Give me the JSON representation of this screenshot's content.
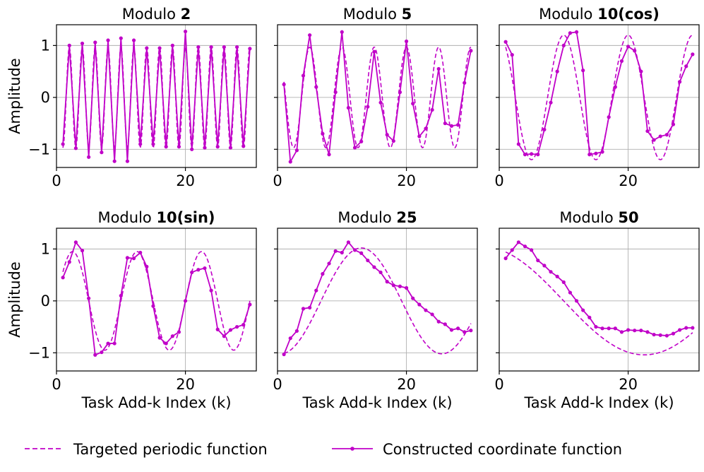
{
  "chart_data": {
    "type": "line",
    "color": "#c000c8",
    "legend": {
      "position": "bottom",
      "entries": [
        {
          "label": "Targeted periodic function",
          "style": "dashed"
        },
        {
          "label": "Constructed coordinate function",
          "style": "solid-marker"
        }
      ]
    },
    "xlabel": "Task Add-k Index (k)",
    "ylabel": "Amplitude",
    "xlim": [
      0,
      31
    ],
    "ylim": [
      -1.35,
      1.4
    ],
    "xticks": [
      0,
      20
    ],
    "yticks": [
      -1,
      0,
      1
    ],
    "grid": true,
    "panels": [
      {
        "id": "mod2",
        "title_prefix": "Modulo",
        "title_value": "2",
        "target": {
          "formula": "cos",
          "period": 2,
          "amplitude": 0.97,
          "phase_k": 0
        },
        "constructed": [
          -0.9,
          1.0,
          -0.98,
          1.04,
          -1.15,
          1.06,
          -1.06,
          1.1,
          -1.23,
          1.14,
          -1.23,
          1.1,
          -0.9,
          0.95,
          -0.9,
          0.95,
          -0.95,
          1.0,
          -0.95,
          1.27,
          -1.0,
          0.97,
          -0.97,
          0.97,
          -0.95,
          0.97,
          -0.97,
          0.97,
          -0.94,
          0.94
        ]
      },
      {
        "id": "mod5",
        "title_prefix": "Modulo",
        "title_value": "5",
        "target": {
          "formula": "cos",
          "period": 5,
          "amplitude": 0.97,
          "phase_k": 0
        },
        "constructed": [
          0.25,
          -1.24,
          -1.02,
          0.42,
          1.2,
          0.2,
          -0.7,
          -1.1,
          0.1,
          1.26,
          -0.2,
          -0.97,
          -0.85,
          -0.18,
          0.88,
          -0.1,
          -0.72,
          -0.84,
          0.1,
          1.08,
          -0.12,
          -0.75,
          -0.6,
          -0.24,
          0.55,
          -0.5,
          -0.55,
          -0.53,
          0.28,
          0.9
        ]
      },
      {
        "id": "mod10cos",
        "title_prefix": "Modulo",
        "title_value": "10(cos)",
        "target": {
          "formula": "cos",
          "period": 10,
          "amplitude": 1.2,
          "phase_k": 0
        },
        "constructed": [
          1.07,
          0.82,
          -0.9,
          -1.1,
          -1.09,
          -1.1,
          -0.62,
          -0.1,
          0.5,
          1.0,
          1.24,
          1.26,
          0.52,
          -1.1,
          -1.08,
          -1.05,
          -0.38,
          0.2,
          0.7,
          0.98,
          0.9,
          0.5,
          -0.65,
          -0.82,
          -0.75,
          -0.72,
          -0.52,
          0.3,
          0.6,
          0.83
        ]
      },
      {
        "id": "mod10sin",
        "title_prefix": "Modulo",
        "title_value": "10(sin)",
        "target": {
          "formula": "sin",
          "period": 10,
          "amplitude": 0.95,
          "phase_k": 0
        },
        "constructed": [
          0.45,
          0.75,
          1.13,
          0.97,
          0.05,
          -1.04,
          -0.99,
          -0.82,
          -0.82,
          0.1,
          0.83,
          0.82,
          0.93,
          0.66,
          -0.1,
          -0.71,
          -0.82,
          -0.68,
          -0.6,
          0.0,
          0.55,
          0.6,
          0.63,
          0.2,
          -0.55,
          -0.68,
          -0.56,
          -0.5,
          -0.46,
          -0.07
        ]
      },
      {
        "id": "mod25",
        "title_prefix": "Modulo",
        "title_value": "25",
        "target": {
          "formula": "cos",
          "period": 25,
          "amplitude": 1.02,
          "phase_k": 13
        },
        "constructed": [
          -1.03,
          -0.72,
          -0.58,
          -0.15,
          -0.13,
          0.2,
          0.52,
          0.72,
          0.96,
          0.93,
          1.13,
          0.98,
          0.92,
          0.78,
          0.65,
          0.55,
          0.37,
          0.3,
          0.28,
          0.25,
          0.05,
          -0.07,
          -0.18,
          -0.26,
          -0.4,
          -0.45,
          -0.56,
          -0.53,
          -0.6,
          -0.57
        ]
      },
      {
        "id": "mod50",
        "title_prefix": "Modulo",
        "title_value": "50",
        "target": {
          "formula": "cos",
          "period": 50,
          "amplitude": 1.04,
          "phase_k": -2.5
        },
        "constructed": [
          0.82,
          0.98,
          1.13,
          1.05,
          0.98,
          0.78,
          0.68,
          0.56,
          0.47,
          0.36,
          0.16,
          0.0,
          -0.18,
          -0.32,
          -0.5,
          -0.53,
          -0.53,
          -0.53,
          -0.6,
          -0.56,
          -0.57,
          -0.57,
          -0.6,
          -0.65,
          -0.66,
          -0.67,
          -0.63,
          -0.56,
          -0.52,
          -0.52
        ]
      }
    ]
  }
}
